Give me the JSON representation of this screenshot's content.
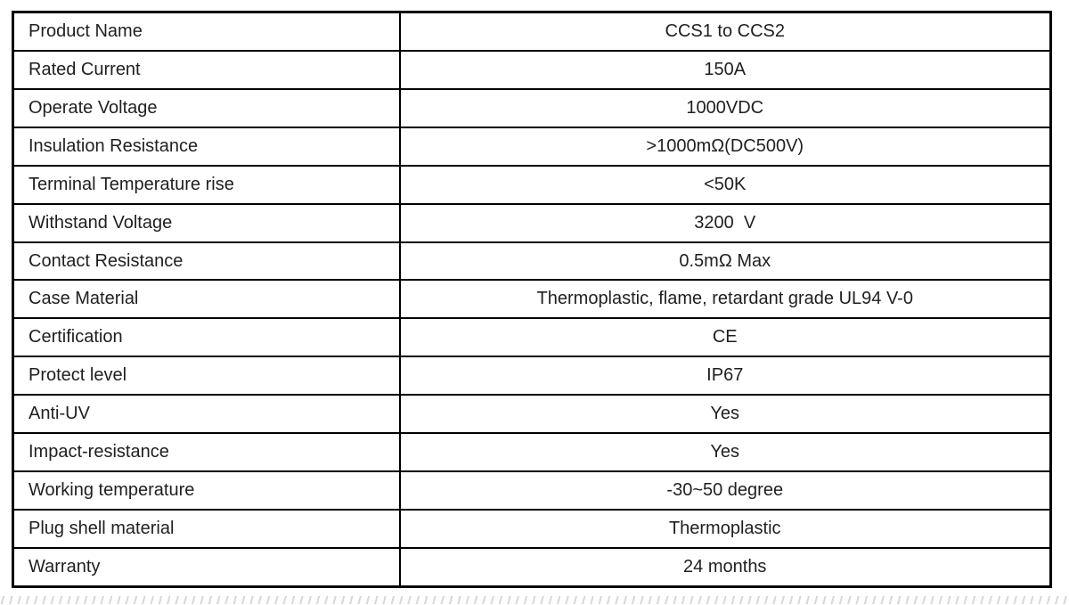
{
  "colors": {
    "table_border": "#000000",
    "text": "#1f1f1f",
    "background": "#ffffff"
  },
  "table": {
    "rows": [
      {
        "label": "Product Name",
        "value": "CCS1 to CCS2"
      },
      {
        "label": "Rated Current",
        "value": "150A"
      },
      {
        "label": "Operate Voltage",
        "value": "1000VDC"
      },
      {
        "label": "Insulation Resistance",
        "value": ">1000mΩ(DC500V)"
      },
      {
        "label": "Terminal Temperature rise",
        "value": "<50K"
      },
      {
        "label": "Withstand Voltage",
        "value": "3200  V"
      },
      {
        "label": "Contact Resistance",
        "value": "0.5mΩ Max"
      },
      {
        "label": "Case Material",
        "value": "Thermoplastic, flame, retardant grade UL94 V-0"
      },
      {
        "label": "Certification",
        "value": "CE"
      },
      {
        "label": "Protect level",
        "value": "IP67"
      },
      {
        "label": "Anti-UV",
        "value": "Yes"
      },
      {
        "label": "Impact-resistance",
        "value": "Yes"
      },
      {
        "label": "Working temperature",
        "value": "-30~50 degree"
      },
      {
        "label": "Plug shell material",
        "value": "Thermoplastic"
      },
      {
        "label": "Warranty",
        "value": "24 months"
      }
    ]
  }
}
